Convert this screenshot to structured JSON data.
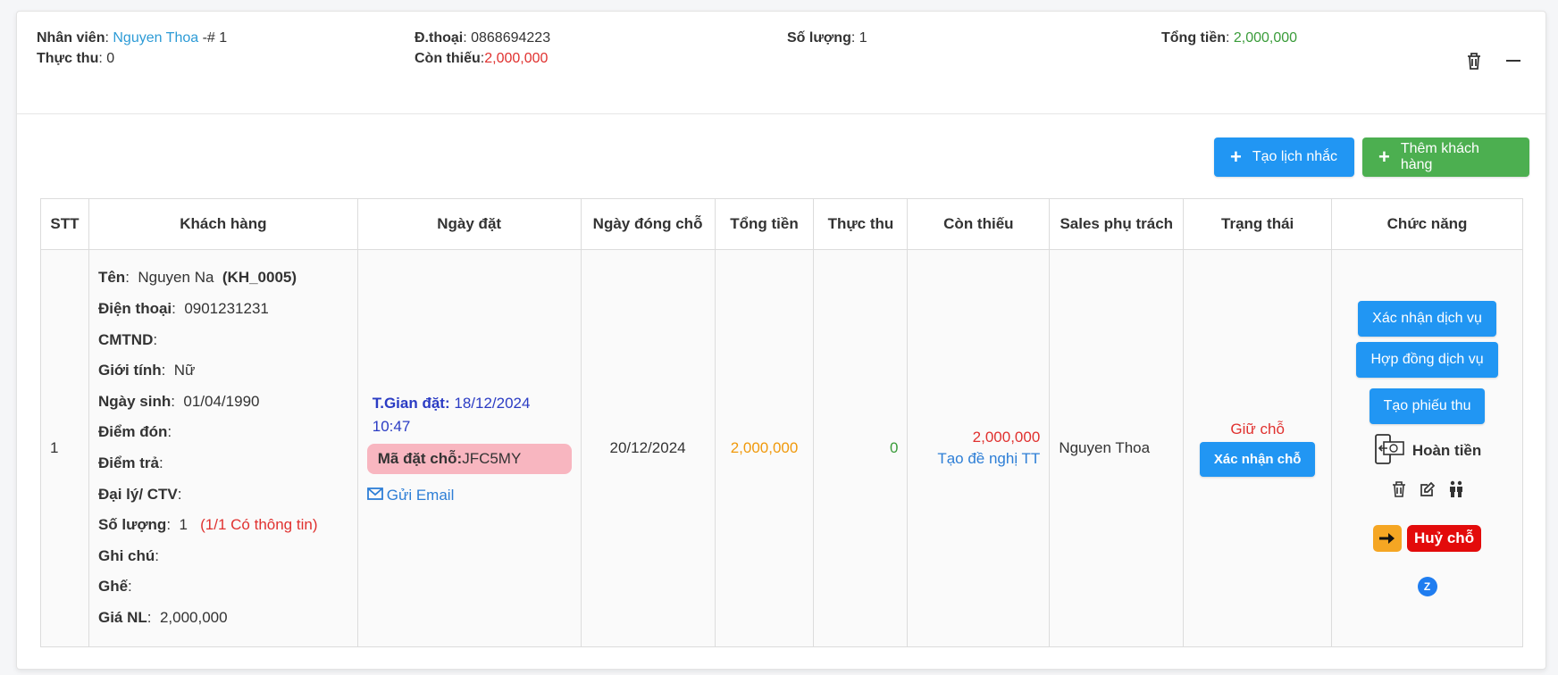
{
  "summary": {
    "staff_label": "Nhân viên",
    "staff_name": "Nguyen Thoa",
    "staff_suffix": "-# 1",
    "paid_label": "Thực thu",
    "paid_value": "0",
    "phone_label": "Đ.thoại",
    "phone_value": "0868694223",
    "remaining_label": "Còn thiếu",
    "remaining_value": "2,000,000",
    "qty_label": "Số lượng",
    "qty_value": "1",
    "total_label": "Tổng tiền",
    "total_value": "2,000,000"
  },
  "toolbar": {
    "reminder_label": "Tạo lịch nhắc",
    "add_customer_label": "Thêm khách hàng"
  },
  "table": {
    "headers": [
      "STT",
      "Khách hàng",
      "Ngày đặt",
      "Ngày đóng chỗ",
      "Tổng tiền",
      "Thực thu",
      "Còn thiếu",
      "Sales phụ trách",
      "Trạng thái",
      "Chức năng"
    ],
    "row": {
      "stt": "1",
      "customer": {
        "name_label": "Tên",
        "name": "Nguyen Na",
        "code": "(KH_0005)",
        "phone_label": "Điện thoại",
        "phone": "0901231231",
        "id_label": "CMTND",
        "gender_label": "Giới tính",
        "gender": "Nữ",
        "dob_label": "Ngày sinh",
        "dob": "01/04/1990",
        "pickup_label": "Điểm đón",
        "dropoff_label": "Điểm trả",
        "agent_label": "Đại lý/ CTV",
        "qty_label": "Số lượng",
        "qty": "1",
        "qty_note": "(1/1 Có thông tin)",
        "note_label": "Ghi chú",
        "seat_label": "Ghế",
        "price_label": "Giá NL",
        "price": "2,000,000"
      },
      "booking": {
        "time_label": "T.Gian đặt:",
        "time_value": "18/12/2024 10:47",
        "code_label": "Mã đặt chỗ:",
        "code_value": "JFC5MY",
        "email_label": "Gửi Email"
      },
      "close_date": "20/12/2024",
      "total": "2,000,000",
      "paid": "0",
      "remaining": "2,000,000",
      "payment_request_label": "Tạo đề nghị TT",
      "sales": "Nguyen Thoa",
      "status": "Giữ chỗ",
      "confirm_hold_label": "Xác nhận chỗ",
      "actions": {
        "confirm_service": "Xác nhận dịch vụ",
        "service_contract": "Hợp đồng dịch vụ",
        "create_receipt": "Tạo phiếu thu",
        "refund": "Hoàn tiền",
        "cancel_hold": "Huỷ chỗ"
      }
    }
  },
  "icons": {
    "trash": "trash-icon",
    "minus": "minus-icon",
    "edit": "edit-icon",
    "people": "people-icon",
    "mail": "mail-icon",
    "refund": "phone-money-icon",
    "arrow": "arrow-right-icon",
    "zalo": "zalo-icon"
  },
  "colors": {
    "blue_button": "#2196f3",
    "green_button": "#4caf50",
    "link_blue": "#2d9bd6",
    "red": "#e0312f",
    "orange": "#f0990b",
    "pink_badge": "#f8b6c0",
    "cancel_red": "#e30b0b"
  }
}
